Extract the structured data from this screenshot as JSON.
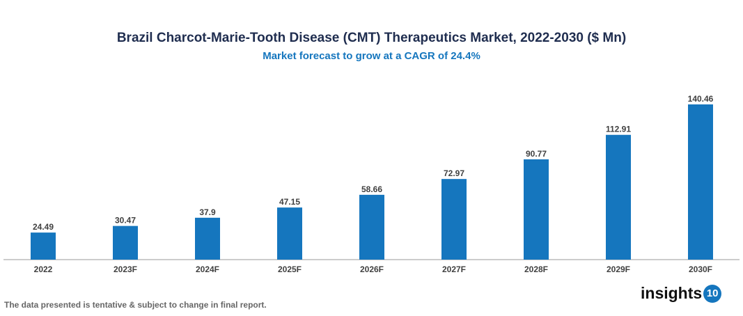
{
  "chart_data": {
    "type": "bar",
    "title": "Brazil Charcot-Marie-Tooth Disease (CMT) Therapeutics Market, 2022-2030 ($ Mn)",
    "subtitle": "Market forecast to grow at a CAGR of 24.4%",
    "categories": [
      "2022",
      "2023F",
      "2024F",
      "2025F",
      "2026F",
      "2027F",
      "2028F",
      "2029F",
      "2030F"
    ],
    "values": [
      24.49,
      30.47,
      37.9,
      47.15,
      58.66,
      72.97,
      90.77,
      112.91,
      140.46
    ],
    "labels": [
      "24.49",
      "30.47",
      "37.9",
      "47.15",
      "58.66",
      "72.97",
      "90.77",
      "112.91",
      "140.46"
    ],
    "xlabel": "",
    "ylabel": "",
    "ylim": [
      0,
      140.46
    ],
    "grid": false,
    "bar_color": "#1576be"
  },
  "footer": "The data presented is tentative & subject to change in final report.",
  "logo": {
    "text": "insights",
    "badge": "10"
  }
}
